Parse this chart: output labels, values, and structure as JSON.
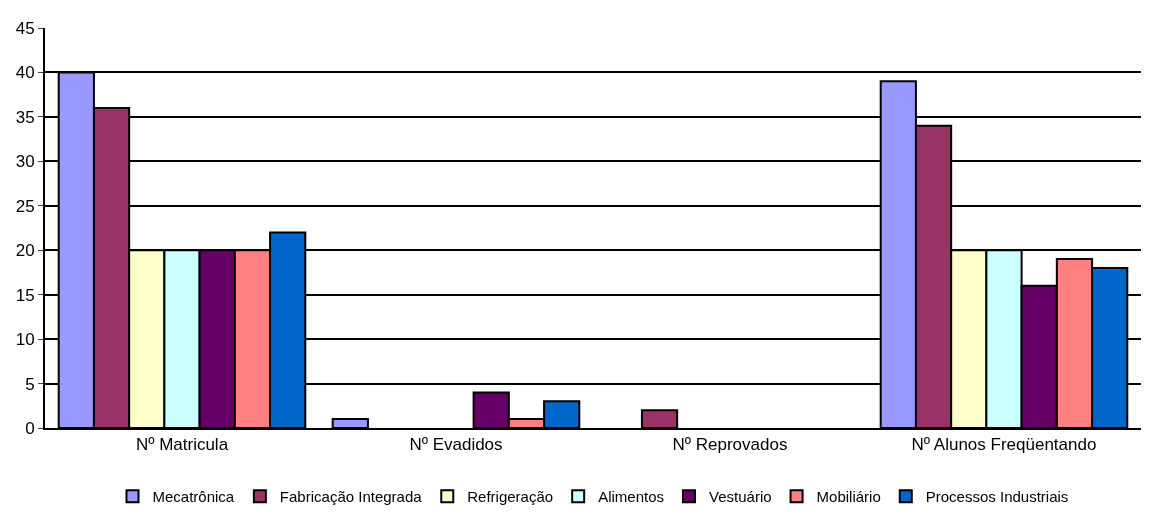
{
  "chart_data": {
    "type": "bar",
    "categories": [
      "Nº Matricula",
      "Nº Evadidos",
      "Nº Reprovados",
      "Nº Alunos Freqüentando"
    ],
    "series": [
      {
        "name": "Mecatrônica",
        "color": "#9999ff",
        "values": [
          40,
          1,
          0,
          39
        ]
      },
      {
        "name": "Fabricação Integrada",
        "color": "#993366",
        "values": [
          36,
          0,
          2,
          34
        ]
      },
      {
        "name": "Refrigeração",
        "color": "#ffffcc",
        "values": [
          20,
          0,
          0,
          20
        ]
      },
      {
        "name": "Alimentos",
        "color": "#ccffff",
        "values": [
          20,
          0,
          0,
          20
        ]
      },
      {
        "name": "Vestuário",
        "color": "#660066",
        "values": [
          20,
          4,
          0,
          16
        ]
      },
      {
        "name": "Mobiliário",
        "color": "#ff8080",
        "values": [
          20,
          1,
          0,
          19
        ]
      },
      {
        "name": "Processos Industriais",
        "color": "#0066cc",
        "values": [
          22,
          3,
          0,
          18
        ]
      }
    ],
    "ylim": [
      0,
      45
    ],
    "yticks": [
      0,
      5,
      10,
      15,
      20,
      25,
      30,
      35,
      40,
      45
    ],
    "grid": "y",
    "legend": "bottom"
  }
}
